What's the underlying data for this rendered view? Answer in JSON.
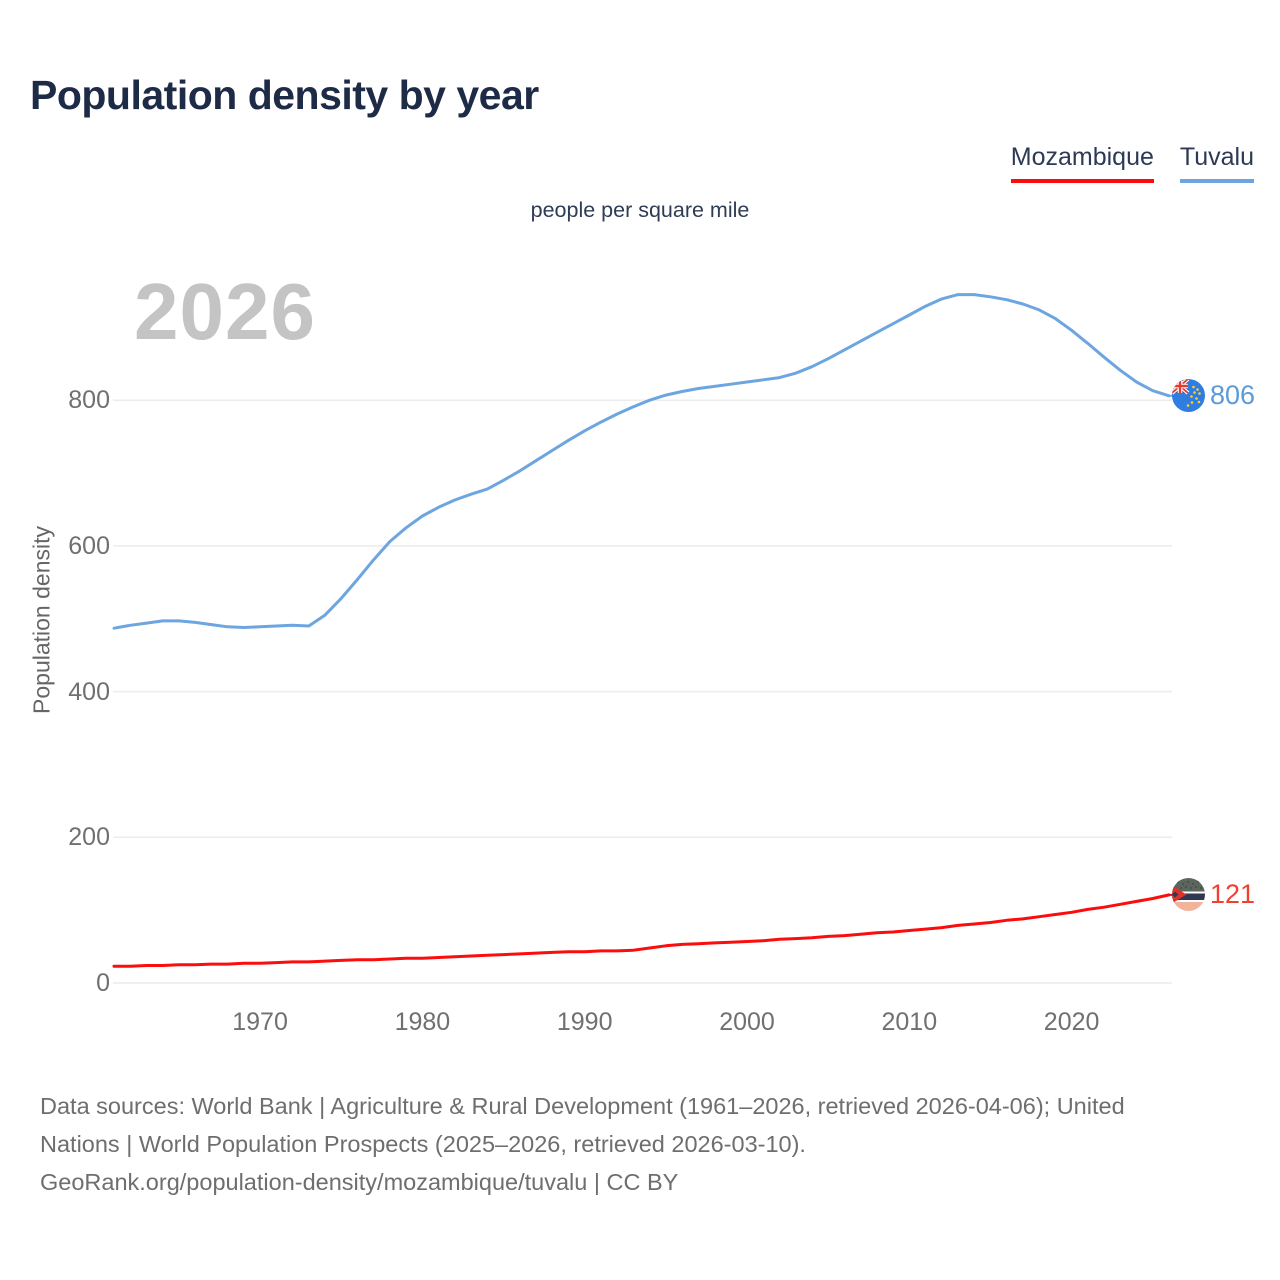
{
  "page": {
    "title": "Population density by year",
    "subtitle": "people per square mile",
    "watermark": "2026",
    "y_axis_title": "Population density"
  },
  "legend": {
    "items": [
      {
        "label": "Mozambique",
        "color": "#fb0d0d"
      },
      {
        "label": "Tuvalu",
        "color": "#6ca5e0"
      }
    ]
  },
  "footer": {
    "lines": [
      "Data sources: World Bank | Agriculture & Rural Development (1961–2026, retrieved 2026-04-06); United",
      "Nations | World Population Prospects (2025–2026, retrieved 2026-03-10).",
      "GeoRank.org/population-density/mozambique/tuvalu | CC BY"
    ]
  },
  "chart_data": {
    "type": "line",
    "title": "Population density by year",
    "unit_label": "people per square mile",
    "ylabel": "Population density",
    "current_year_watermark": "2026",
    "xlim": [
      1961,
      2026
    ],
    "ylim": [
      0,
      1000
    ],
    "yticks": [
      0,
      200,
      400,
      600,
      800
    ],
    "xticks": [
      1970,
      1980,
      1990,
      2000,
      2010,
      2020
    ],
    "grid": true,
    "legend_position": "top-right",
    "series": [
      {
        "key": "mozambique",
        "name": "Mozambique",
        "color": "#fb0d0d",
        "label_color": "#f04030",
        "end_label": "121",
        "end_value": 121,
        "values": [
          23,
          23,
          24,
          24,
          25,
          25,
          26,
          26,
          27,
          27,
          28,
          29,
          29,
          30,
          31,
          32,
          32,
          33,
          34,
          34,
          35,
          36,
          37,
          38,
          39,
          40,
          41,
          42,
          43,
          43,
          44,
          44,
          45,
          48,
          51,
          53,
          54,
          55,
          56,
          57,
          58,
          60,
          61,
          62,
          64,
          65,
          67,
          69,
          70,
          72,
          74,
          76,
          79,
          81,
          83,
          86,
          88,
          91,
          94,
          97,
          101,
          104,
          108,
          112,
          116,
          121
        ]
      },
      {
        "key": "tuvalu",
        "name": "Tuvalu",
        "color": "#6ca5e0",
        "label_color": "#5b9bd8",
        "end_label": "806",
        "end_value": 806,
        "values": [
          487,
          491,
          494,
          497,
          497,
          495,
          492,
          489,
          488,
          489,
          490,
          491,
          490,
          505,
          528,
          554,
          581,
          606,
          625,
          641,
          653,
          663,
          671,
          678,
          690,
          703,
          717,
          731,
          745,
          758,
          770,
          781,
          791,
          800,
          807,
          812,
          816,
          819,
          822,
          825,
          828,
          831,
          837,
          846,
          857,
          869,
          881,
          893,
          905,
          917,
          929,
          939,
          945,
          945,
          942,
          938,
          932,
          924,
          912,
          896,
          878,
          859,
          841,
          825,
          813,
          806
        ]
      }
    ]
  }
}
